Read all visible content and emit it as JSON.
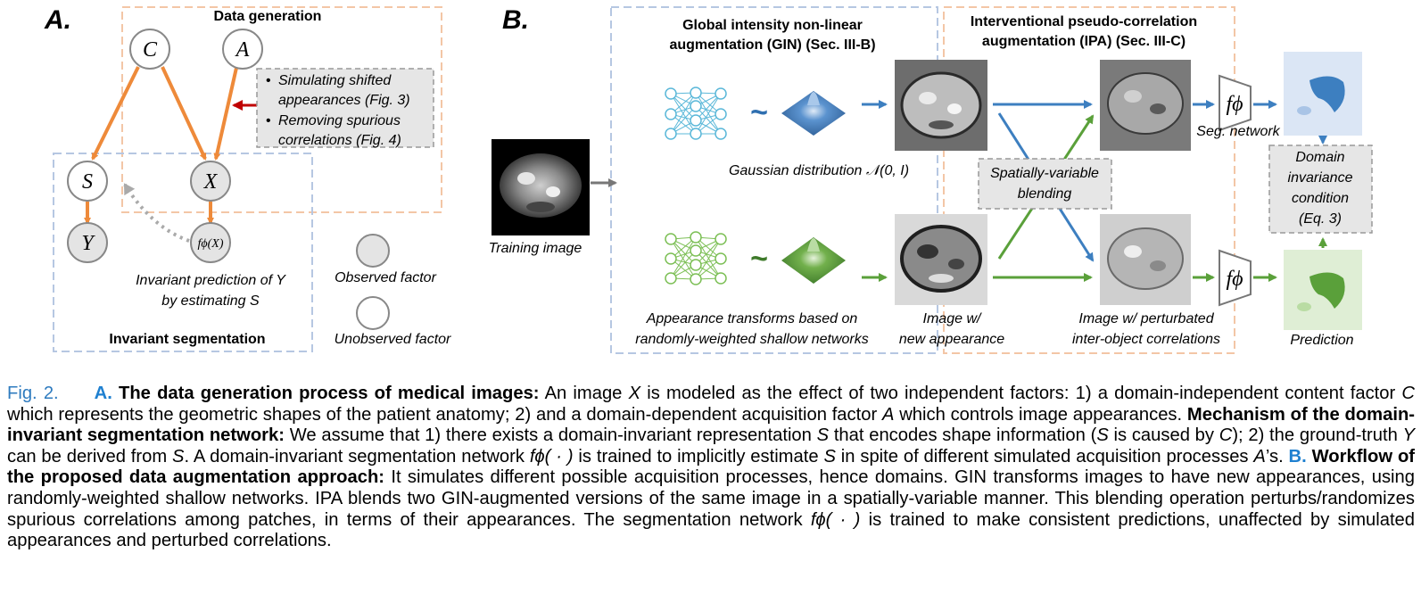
{
  "panelA": {
    "label": "A.",
    "data_generation_title": "Data generation",
    "nodes": {
      "C": "C",
      "A": "A",
      "S": "S",
      "X": "X",
      "Y": "Y",
      "f": "fϕ(X)"
    },
    "note_items": [
      "Simulating shifted appearances (Fig. 3)",
      "Removing spurious correlations (Fig. 4)"
    ],
    "note_lines": [
      "Simulating shifted",
      "appearances (Fig. 3)",
      "Removing spurious",
      "correlations (Fig. 4)"
    ],
    "invariant_prediction": [
      "Invariant prediction of Y",
      "by estimating S"
    ],
    "invariant_segmentation_title": "Invariant segmentation",
    "legend_observed": "Observed factor",
    "legend_unobserved": "Unobserved factor"
  },
  "panelB": {
    "label": "B.",
    "gin_title": [
      "Global intensity non-linear",
      "augmentation (GIN) (Sec. III-B)"
    ],
    "ipa_title": [
      "Interventional pseudo-correlation",
      "augmentation (IPA) (Sec. III-C)"
    ],
    "training_image": "Training image",
    "gaussian": "Gaussian distribution 𝒩(0, I)",
    "appearance_transforms": [
      "Appearance transforms based on",
      "randomly-weighted shallow networks"
    ],
    "image_new_appearance": [
      "Image w/",
      "new appearance"
    ],
    "blending": [
      "Spatially-variable",
      "blending"
    ],
    "image_perturbed": [
      "Image w/ perturbated",
      "inter-object correlations"
    ],
    "seg_network": "Seg. network",
    "f_phi": "fϕ",
    "domain_invariance": [
      "Domain",
      "invariance",
      "condition",
      "(Eq. 3)"
    ],
    "prediction": "Prediction",
    "tilde": "~",
    "colors": {
      "blue": "#3d7fc0",
      "green": "#5aa03a",
      "orange": "#ee8a3a"
    }
  },
  "caption": {
    "fig": "Fig. 2.",
    "a": "A.",
    "a_title": "The data generation process of medical images:",
    "t1": " An image ",
    "X": "X",
    "t2": " is modeled as the effect of two independent factors: 1) a domain-independent content factor ",
    "C": "C",
    "t3": " which represents the geometric shapes of the patient anatomy; 2) and a domain-dependent acquisition factor ",
    "A": "A",
    "t4": " which controls image appearances. ",
    "mech_title": "Mechanism of the domain-invariant segmentation network:",
    "t5": " We assume that 1) there exists a domain-invariant representation ",
    "S": "S",
    "t6": " that encodes shape information (",
    "t7": " is caused by ",
    "t8": "); 2) the ground-truth ",
    "Y": "Y",
    "t9": " can be derived from ",
    "t10": ". A domain-invariant segmentation network ",
    "fphi": "fϕ( · )",
    "t11": " is trained to implicitly estimate ",
    "t12": " in spite of different simulated acquisition processes ",
    "t13": "’s. ",
    "b": "B.",
    "b_title": "Workflow of the proposed data augmentation approach:",
    "t14": " It simulates different possible acquisition processes, hence domains. GIN transforms images to have new appearances, using randomly-weighted shallow networks. IPA blends two GIN-augmented versions of the same image in a spatially-variable manner. This blending operation perturbs/randomizes spurious correlations among patches, in terms of their appearances. The segmentation network ",
    "t15": " is trained to make consistent predictions, unaffected by simulated appearances and perturbed correlations."
  }
}
